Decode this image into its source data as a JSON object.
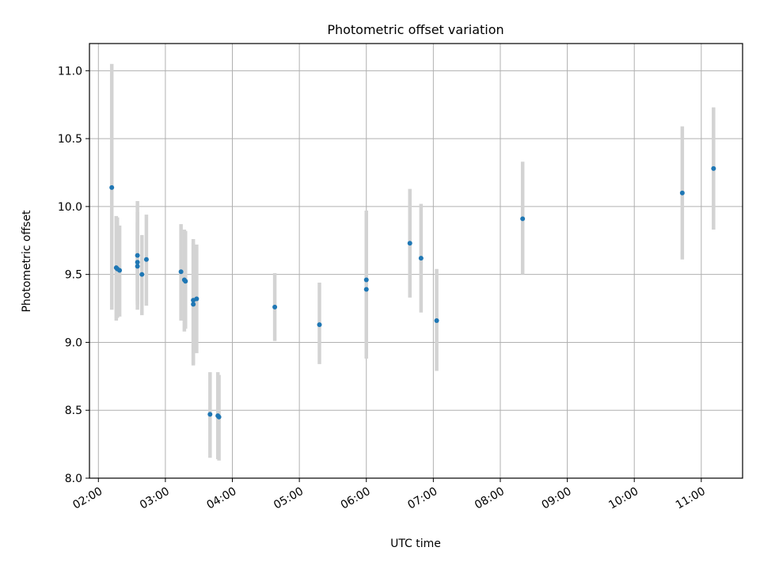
{
  "chart_data": {
    "type": "scatter",
    "title": "Photometric offset variation",
    "xlabel": "UTC time",
    "ylabel": "Photometric offset",
    "x_format": "HH:MM",
    "xlim": [
      "01:52",
      "11:37"
    ],
    "ylim": [
      8.0,
      11.2
    ],
    "x_ticks": [
      "02:00",
      "03:00",
      "04:00",
      "05:00",
      "06:00",
      "07:00",
      "08:00",
      "09:00",
      "10:00",
      "11:00"
    ],
    "y_ticks": [
      "8.0",
      "8.5",
      "9.0",
      "9.5",
      "10.0",
      "10.5",
      "11.0"
    ],
    "grid": true,
    "legend": "none",
    "colors": {
      "point": "#1f77b4",
      "errorbar": "#d3d3d3",
      "grid": "#b0b0b0"
    },
    "series": [
      {
        "points": [
          {
            "x": "02:12",
            "y": 10.14,
            "err_low": 9.24,
            "err_high": 11.05
          },
          {
            "x": "02:16",
            "y": 9.55,
            "err_low": 9.16,
            "err_high": 9.93
          },
          {
            "x": "02:17",
            "y": 9.54,
            "err_low": 9.18,
            "err_high": 9.92
          },
          {
            "x": "02:19",
            "y": 9.53,
            "err_low": 9.19,
            "err_high": 9.86
          },
          {
            "x": "02:35",
            "y": 9.64,
            "err_low": 9.24,
            "err_high": 10.04
          },
          {
            "x": "02:35",
            "y": 9.59,
            "err_low": 9.28,
            "err_high": 9.96
          },
          {
            "x": "02:35",
            "y": 9.56,
            "err_low": 9.31,
            "err_high": 9.88
          },
          {
            "x": "02:39",
            "y": 9.5,
            "err_low": 9.2,
            "err_high": 9.79
          },
          {
            "x": "02:43",
            "y": 9.61,
            "err_low": 9.27,
            "err_high": 9.94
          },
          {
            "x": "03:14",
            "y": 9.52,
            "err_low": 9.16,
            "err_high": 9.87
          },
          {
            "x": "03:17",
            "y": 9.46,
            "err_low": 9.08,
            "err_high": 9.83
          },
          {
            "x": "03:18",
            "y": 9.45,
            "err_low": 9.1,
            "err_high": 9.82
          },
          {
            "x": "03:25",
            "y": 9.31,
            "err_low": 8.84,
            "err_high": 9.76
          },
          {
            "x": "03:25",
            "y": 9.28,
            "err_low": 8.83,
            "err_high": 9.73
          },
          {
            "x": "03:28",
            "y": 9.32,
            "err_low": 8.92,
            "err_high": 9.72
          },
          {
            "x": "03:40",
            "y": 8.47,
            "err_low": 8.15,
            "err_high": 8.78
          },
          {
            "x": "03:47",
            "y": 8.46,
            "err_low": 8.14,
            "err_high": 8.78
          },
          {
            "x": "03:48",
            "y": 8.45,
            "err_low": 8.13,
            "err_high": 8.76
          },
          {
            "x": "04:38",
            "y": 9.26,
            "err_low": 9.01,
            "err_high": 9.51
          },
          {
            "x": "05:18",
            "y": 9.13,
            "err_low": 8.84,
            "err_high": 9.44
          },
          {
            "x": "06:00",
            "y": 9.46,
            "err_low": 8.95,
            "err_high": 9.97
          },
          {
            "x": "06:00",
            "y": 9.39,
            "err_low": 8.88,
            "err_high": 9.9
          },
          {
            "x": "06:39",
            "y": 9.73,
            "err_low": 9.33,
            "err_high": 10.13
          },
          {
            "x": "06:49",
            "y": 9.62,
            "err_low": 9.22,
            "err_high": 10.02
          },
          {
            "x": "07:03",
            "y": 9.16,
            "err_low": 8.79,
            "err_high": 9.54
          },
          {
            "x": "08:20",
            "y": 9.91,
            "err_low": 9.5,
            "err_high": 10.33
          },
          {
            "x": "10:43",
            "y": 10.1,
            "err_low": 9.61,
            "err_high": 10.59
          },
          {
            "x": "11:11",
            "y": 10.28,
            "err_low": 9.83,
            "err_high": 10.73
          }
        ]
      }
    ]
  }
}
